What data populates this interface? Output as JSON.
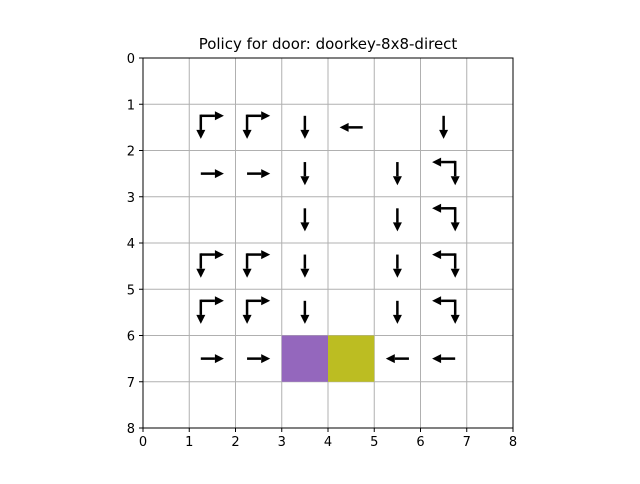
{
  "chart_data": {
    "type": "heatmap",
    "title": "Policy for door: doorkey-8x8-direct",
    "xlabel": "",
    "ylabel": "",
    "xlim": [
      0,
      8
    ],
    "ylim": [
      8,
      0
    ],
    "y_inverted": true,
    "grid": true,
    "xticks": [
      "0",
      "1",
      "2",
      "3",
      "4",
      "5",
      "6",
      "7",
      "8"
    ],
    "yticks": [
      "0",
      "1",
      "2",
      "3",
      "4",
      "5",
      "6",
      "7",
      "8"
    ],
    "grid_color": "#b0b0b0",
    "arrow_color": "#000000",
    "highlight_cells": [
      {
        "name": "cell-purple",
        "col": 3,
        "row": 6,
        "color": "#9467bd"
      },
      {
        "name": "cell-olive",
        "col": 4,
        "row": 6,
        "color": "#bcbd22"
      }
    ],
    "policy": [
      {
        "col": 1,
        "row": 1,
        "actions": [
          "right",
          "down"
        ]
      },
      {
        "col": 2,
        "row": 1,
        "actions": [
          "right",
          "down"
        ]
      },
      {
        "col": 3,
        "row": 1,
        "actions": [
          "down"
        ]
      },
      {
        "col": 4,
        "row": 1,
        "actions": [
          "left"
        ]
      },
      {
        "col": 6,
        "row": 1,
        "actions": [
          "down"
        ]
      },
      {
        "col": 1,
        "row": 2,
        "actions": [
          "right"
        ]
      },
      {
        "col": 2,
        "row": 2,
        "actions": [
          "right"
        ]
      },
      {
        "col": 3,
        "row": 2,
        "actions": [
          "down"
        ]
      },
      {
        "col": 5,
        "row": 2,
        "actions": [
          "down"
        ]
      },
      {
        "col": 6,
        "row": 2,
        "actions": [
          "left",
          "down"
        ]
      },
      {
        "col": 3,
        "row": 3,
        "actions": [
          "down"
        ]
      },
      {
        "col": 5,
        "row": 3,
        "actions": [
          "down"
        ]
      },
      {
        "col": 6,
        "row": 3,
        "actions": [
          "left",
          "down"
        ]
      },
      {
        "col": 1,
        "row": 4,
        "actions": [
          "right",
          "down"
        ]
      },
      {
        "col": 2,
        "row": 4,
        "actions": [
          "right",
          "down"
        ]
      },
      {
        "col": 3,
        "row": 4,
        "actions": [
          "down"
        ]
      },
      {
        "col": 5,
        "row": 4,
        "actions": [
          "down"
        ]
      },
      {
        "col": 6,
        "row": 4,
        "actions": [
          "left",
          "down"
        ]
      },
      {
        "col": 1,
        "row": 5,
        "actions": [
          "right",
          "down"
        ]
      },
      {
        "col": 2,
        "row": 5,
        "actions": [
          "right",
          "down"
        ]
      },
      {
        "col": 3,
        "row": 5,
        "actions": [
          "down"
        ]
      },
      {
        "col": 5,
        "row": 5,
        "actions": [
          "down"
        ]
      },
      {
        "col": 6,
        "row": 5,
        "actions": [
          "left",
          "down"
        ]
      },
      {
        "col": 1,
        "row": 6,
        "actions": [
          "right"
        ]
      },
      {
        "col": 2,
        "row": 6,
        "actions": [
          "right"
        ]
      },
      {
        "col": 5,
        "row": 6,
        "actions": [
          "left"
        ]
      },
      {
        "col": 6,
        "row": 6,
        "actions": [
          "left"
        ]
      }
    ]
  }
}
